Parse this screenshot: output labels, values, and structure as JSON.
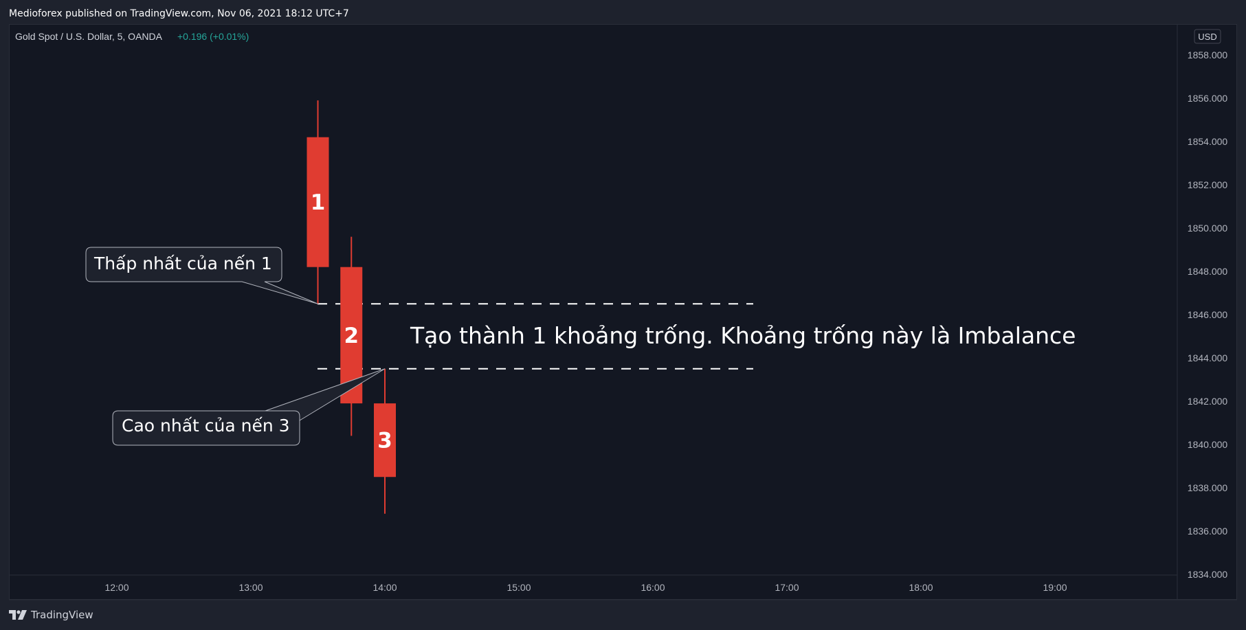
{
  "header": {
    "published_line": "Medioforex published on TradingView.com, Nov 06, 2021 18:12 UTC+7"
  },
  "legend": {
    "symbol": "Gold Spot / U.S. Dollar, 5, OANDA",
    "change": "+0.196 (+0.01%)",
    "change_color": "#26a69a"
  },
  "price_axis": {
    "currency": "USD",
    "ticks": [
      "1858.000",
      "1856.000",
      "1854.000",
      "1852.000",
      "1850.000",
      "1848.000",
      "1846.000",
      "1844.000",
      "1842.000",
      "1840.000",
      "1838.000",
      "1836.000",
      "1834.000"
    ]
  },
  "time_axis": {
    "ticks": [
      "12:00",
      "13:00",
      "14:00",
      "15:00",
      "16:00",
      "17:00",
      "18:00",
      "19:00"
    ]
  },
  "chart_data": {
    "type": "candlestick",
    "ylim": [
      1834.0,
      1858.5
    ],
    "candles": [
      {
        "label": "1",
        "time": "13:30",
        "open": 1854.2,
        "high": 1855.9,
        "low": 1846.5,
        "close": 1848.2,
        "color": "#e03c31"
      },
      {
        "label": "2",
        "time": "13:45",
        "open": 1848.2,
        "high": 1849.6,
        "low": 1840.4,
        "close": 1841.9,
        "color": "#e03c31"
      },
      {
        "label": "3",
        "time": "14:00",
        "open": 1841.9,
        "high": 1843.5,
        "low": 1836.8,
        "close": 1838.5,
        "color": "#e03c31"
      }
    ],
    "dashed_lines": [
      {
        "price": 1846.5
      },
      {
        "price": 1843.5
      }
    ],
    "annotations": {
      "callout_low": "Thấp nhất của nến 1",
      "callout_high": "Cao nhất của nến 3",
      "imbalance_text": "Tạo thành 1 khoảng trống. Khoảng trống này là Imbalance"
    }
  },
  "footer": {
    "brand": "TradingView"
  }
}
